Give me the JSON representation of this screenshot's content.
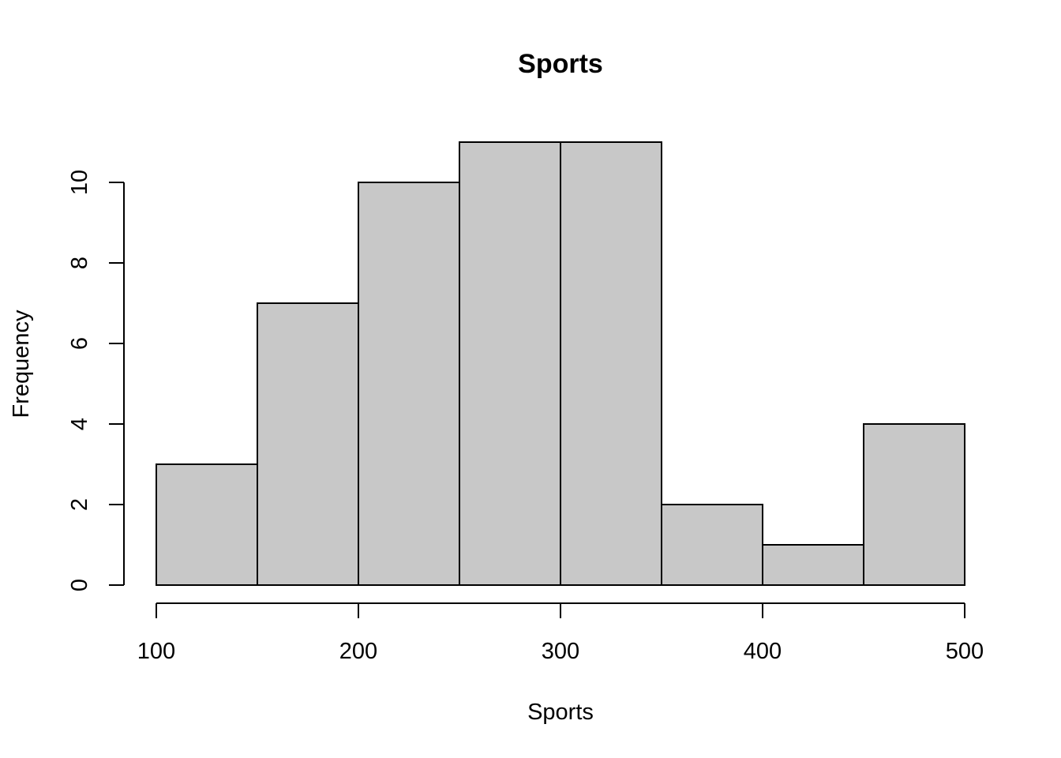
{
  "chart_data": {
    "type": "bar",
    "title": "Sports",
    "xlabel": "Sports",
    "ylabel": "Frequency",
    "bins": [
      {
        "start": 100,
        "end": 150,
        "count": 3
      },
      {
        "start": 150,
        "end": 200,
        "count": 7
      },
      {
        "start": 200,
        "end": 250,
        "count": 10
      },
      {
        "start": 250,
        "end": 300,
        "count": 11
      },
      {
        "start": 300,
        "end": 350,
        "count": 11
      },
      {
        "start": 350,
        "end": 400,
        "count": 2
      },
      {
        "start": 400,
        "end": 450,
        "count": 1
      },
      {
        "start": 450,
        "end": 500,
        "count": 4
      }
    ],
    "xlim": [
      100,
      500
    ],
    "ylim": [
      0,
      11
    ],
    "x_ticks": [
      100,
      200,
      300,
      400,
      500
    ],
    "y_ticks": [
      0,
      2,
      4,
      6,
      8,
      10
    ],
    "colors": {
      "bar_fill": "#c8c8c8",
      "bar_stroke": "#000000"
    },
    "grid": false,
    "legend": "none"
  }
}
